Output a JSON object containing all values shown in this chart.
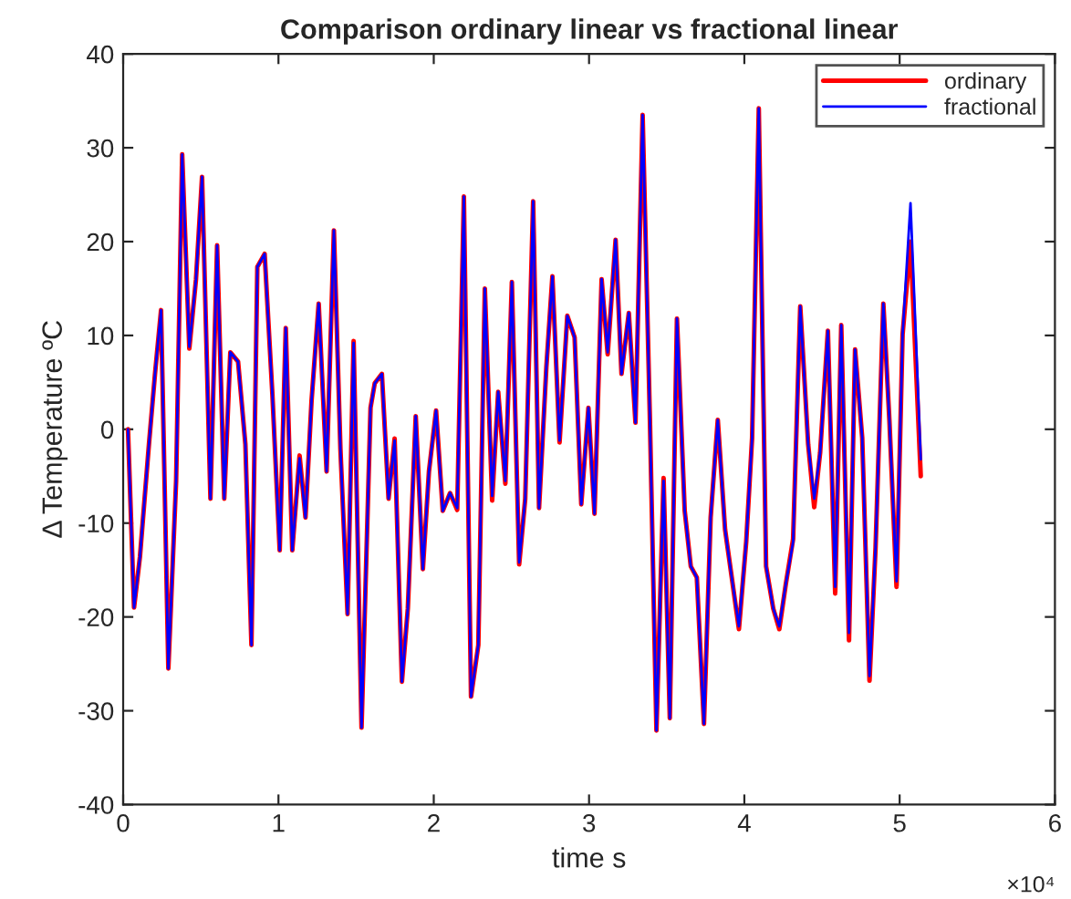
{
  "chart_data": {
    "type": "line",
    "title": "Comparison ordinary linear vs fractional linear",
    "xlabel": "time s",
    "ylabel": "Δ Temperature ºC",
    "xlim": [
      0,
      6
    ],
    "ylim": [
      -40,
      40
    ],
    "xticks": [
      0,
      1,
      2,
      3,
      4,
      5,
      6
    ],
    "yticks": [
      -40,
      -30,
      -20,
      -10,
      0,
      10,
      20,
      30,
      40
    ],
    "annotations": [
      "×10⁴"
    ],
    "grid": false,
    "legend": "top right",
    "marker": "none",
    "line_style": "solid",
    "x": [
      0.031,
      0.07,
      0.108,
      0.166,
      0.205,
      0.244,
      0.291,
      0.341,
      0.38,
      0.426,
      0.469,
      0.508,
      0.562,
      0.605,
      0.651,
      0.69,
      0.74,
      0.787,
      0.826,
      0.864,
      0.911,
      0.961,
      1.008,
      1.047,
      1.089,
      1.136,
      1.174,
      1.213,
      1.259,
      1.31,
      1.357,
      1.399,
      1.445,
      1.484,
      1.535,
      1.593,
      1.62,
      1.666,
      1.709,
      1.748,
      1.795,
      1.833,
      1.884,
      1.93,
      1.969,
      2.015,
      2.058,
      2.105,
      2.151,
      2.194,
      2.24,
      2.287,
      2.329,
      2.376,
      2.415,
      2.461,
      2.503,
      2.55,
      2.589,
      2.64,
      2.678,
      2.725,
      2.764,
      2.81,
      2.86,
      2.907,
      2.95,
      2.996,
      3.035,
      3.081,
      3.12,
      3.171,
      3.209,
      3.256,
      3.299,
      3.345,
      3.392,
      3.434,
      3.48,
      3.52,
      3.566,
      3.616,
      3.655,
      3.694,
      3.74,
      3.783,
      3.829,
      3.876,
      3.919,
      3.965,
      4.012,
      4.05,
      4.093,
      4.14,
      4.186,
      4.225,
      4.267,
      4.314,
      4.36,
      4.411,
      4.45,
      4.488,
      4.538,
      4.585,
      4.624,
      4.674,
      4.713,
      4.759,
      4.806,
      4.845,
      4.895,
      4.934,
      4.98,
      5.019,
      5.07,
      5.136
    ],
    "series": [
      {
        "name": "ordinary",
        "color": "#ff0000",
        "values": [
          0,
          -19,
          -13.6,
          -1.6,
          5.9,
          12.7,
          -25.5,
          -5.5,
          29.3,
          8.6,
          16,
          26.9,
          -7.4,
          19.6,
          -7.4,
          8.2,
          7.2,
          -1.6,
          -23,
          17.3,
          18.7,
          3.7,
          -12.9,
          10.8,
          -12.9,
          -2.8,
          -9.4,
          3,
          13.4,
          -4.5,
          21.2,
          -2.1,
          -19.7,
          9.4,
          -31.8,
          2.3,
          4.9,
          5.9,
          -7.4,
          -1.0,
          -26.9,
          -19.1,
          1.4,
          -14.9,
          -4.5,
          2,
          -8.7,
          -6.8,
          -8.6,
          24.8,
          -28.5,
          -23,
          15,
          -7.6,
          4,
          -5.8,
          15.7,
          -14.4,
          -7.4,
          24.3,
          -8.4,
          6.6,
          16.3,
          -1.4,
          12.1,
          9.8,
          -8,
          2.3,
          -9,
          16,
          8,
          20.2,
          5.9,
          12.4,
          0.7,
          33.5,
          1,
          -32.1,
          -5.2,
          -30.8,
          11.8,
          -8.7,
          -14.6,
          -15.8,
          -31.4,
          -9.4,
          1,
          -10.7,
          -15.8,
          -21.3,
          -12,
          -0.9,
          34.2,
          -14.6,
          -19.1,
          -21.3,
          -16.5,
          -11.7,
          13.1,
          -1.6,
          -8.3,
          -2.5,
          10.5,
          -17.5,
          11.1,
          -22.5,
          8.5,
          -0.9,
          -26.8,
          -12.6,
          13.4,
          1,
          -16.8,
          10.1,
          20,
          -5
        ]
      },
      {
        "name": "fractional",
        "color": "#0000ff",
        "values": [
          0,
          -19,
          -13.6,
          -1.6,
          5.9,
          12.7,
          -25.5,
          -5.5,
          29.3,
          8.8,
          16,
          26.9,
          -7.4,
          19.6,
          -7.4,
          8.2,
          7.2,
          -1.6,
          -23,
          17.3,
          18.7,
          3.7,
          -12.9,
          10.8,
          -12.9,
          -3.1,
          -9.4,
          3,
          13.4,
          -4.5,
          21.2,
          -2.1,
          -19.7,
          9.2,
          -31.8,
          2.3,
          4.9,
          5.9,
          -7.4,
          -1.2,
          -26.9,
          -19.1,
          1.4,
          -14.9,
          -4.5,
          2,
          -8.7,
          -6.8,
          -8.4,
          24.8,
          -28.5,
          -23,
          15,
          -7.1,
          4,
          -5.5,
          15.7,
          -14.2,
          -7.4,
          24.3,
          -8.4,
          6.6,
          16.3,
          -1.2,
          12.1,
          9.8,
          -8,
          2.3,
          -9,
          16,
          8.2,
          20.2,
          5.9,
          12.4,
          0.7,
          33.5,
          1,
          -32.1,
          -5.5,
          -30.8,
          11.8,
          -8.7,
          -14.6,
          -15.8,
          -31.4,
          -9.4,
          1,
          -10.7,
          -15.8,
          -21,
          -12,
          -0.9,
          34.2,
          -14.6,
          -19.1,
          -21,
          -16.5,
          -12,
          13.1,
          -1.6,
          -7.4,
          -2.5,
          10.5,
          -16.8,
          11.1,
          -21.7,
          8.5,
          -0.9,
          -26.3,
          -12.6,
          13.4,
          1,
          -16.2,
          10.1,
          24.1,
          -3.2
        ]
      }
    ]
  }
}
